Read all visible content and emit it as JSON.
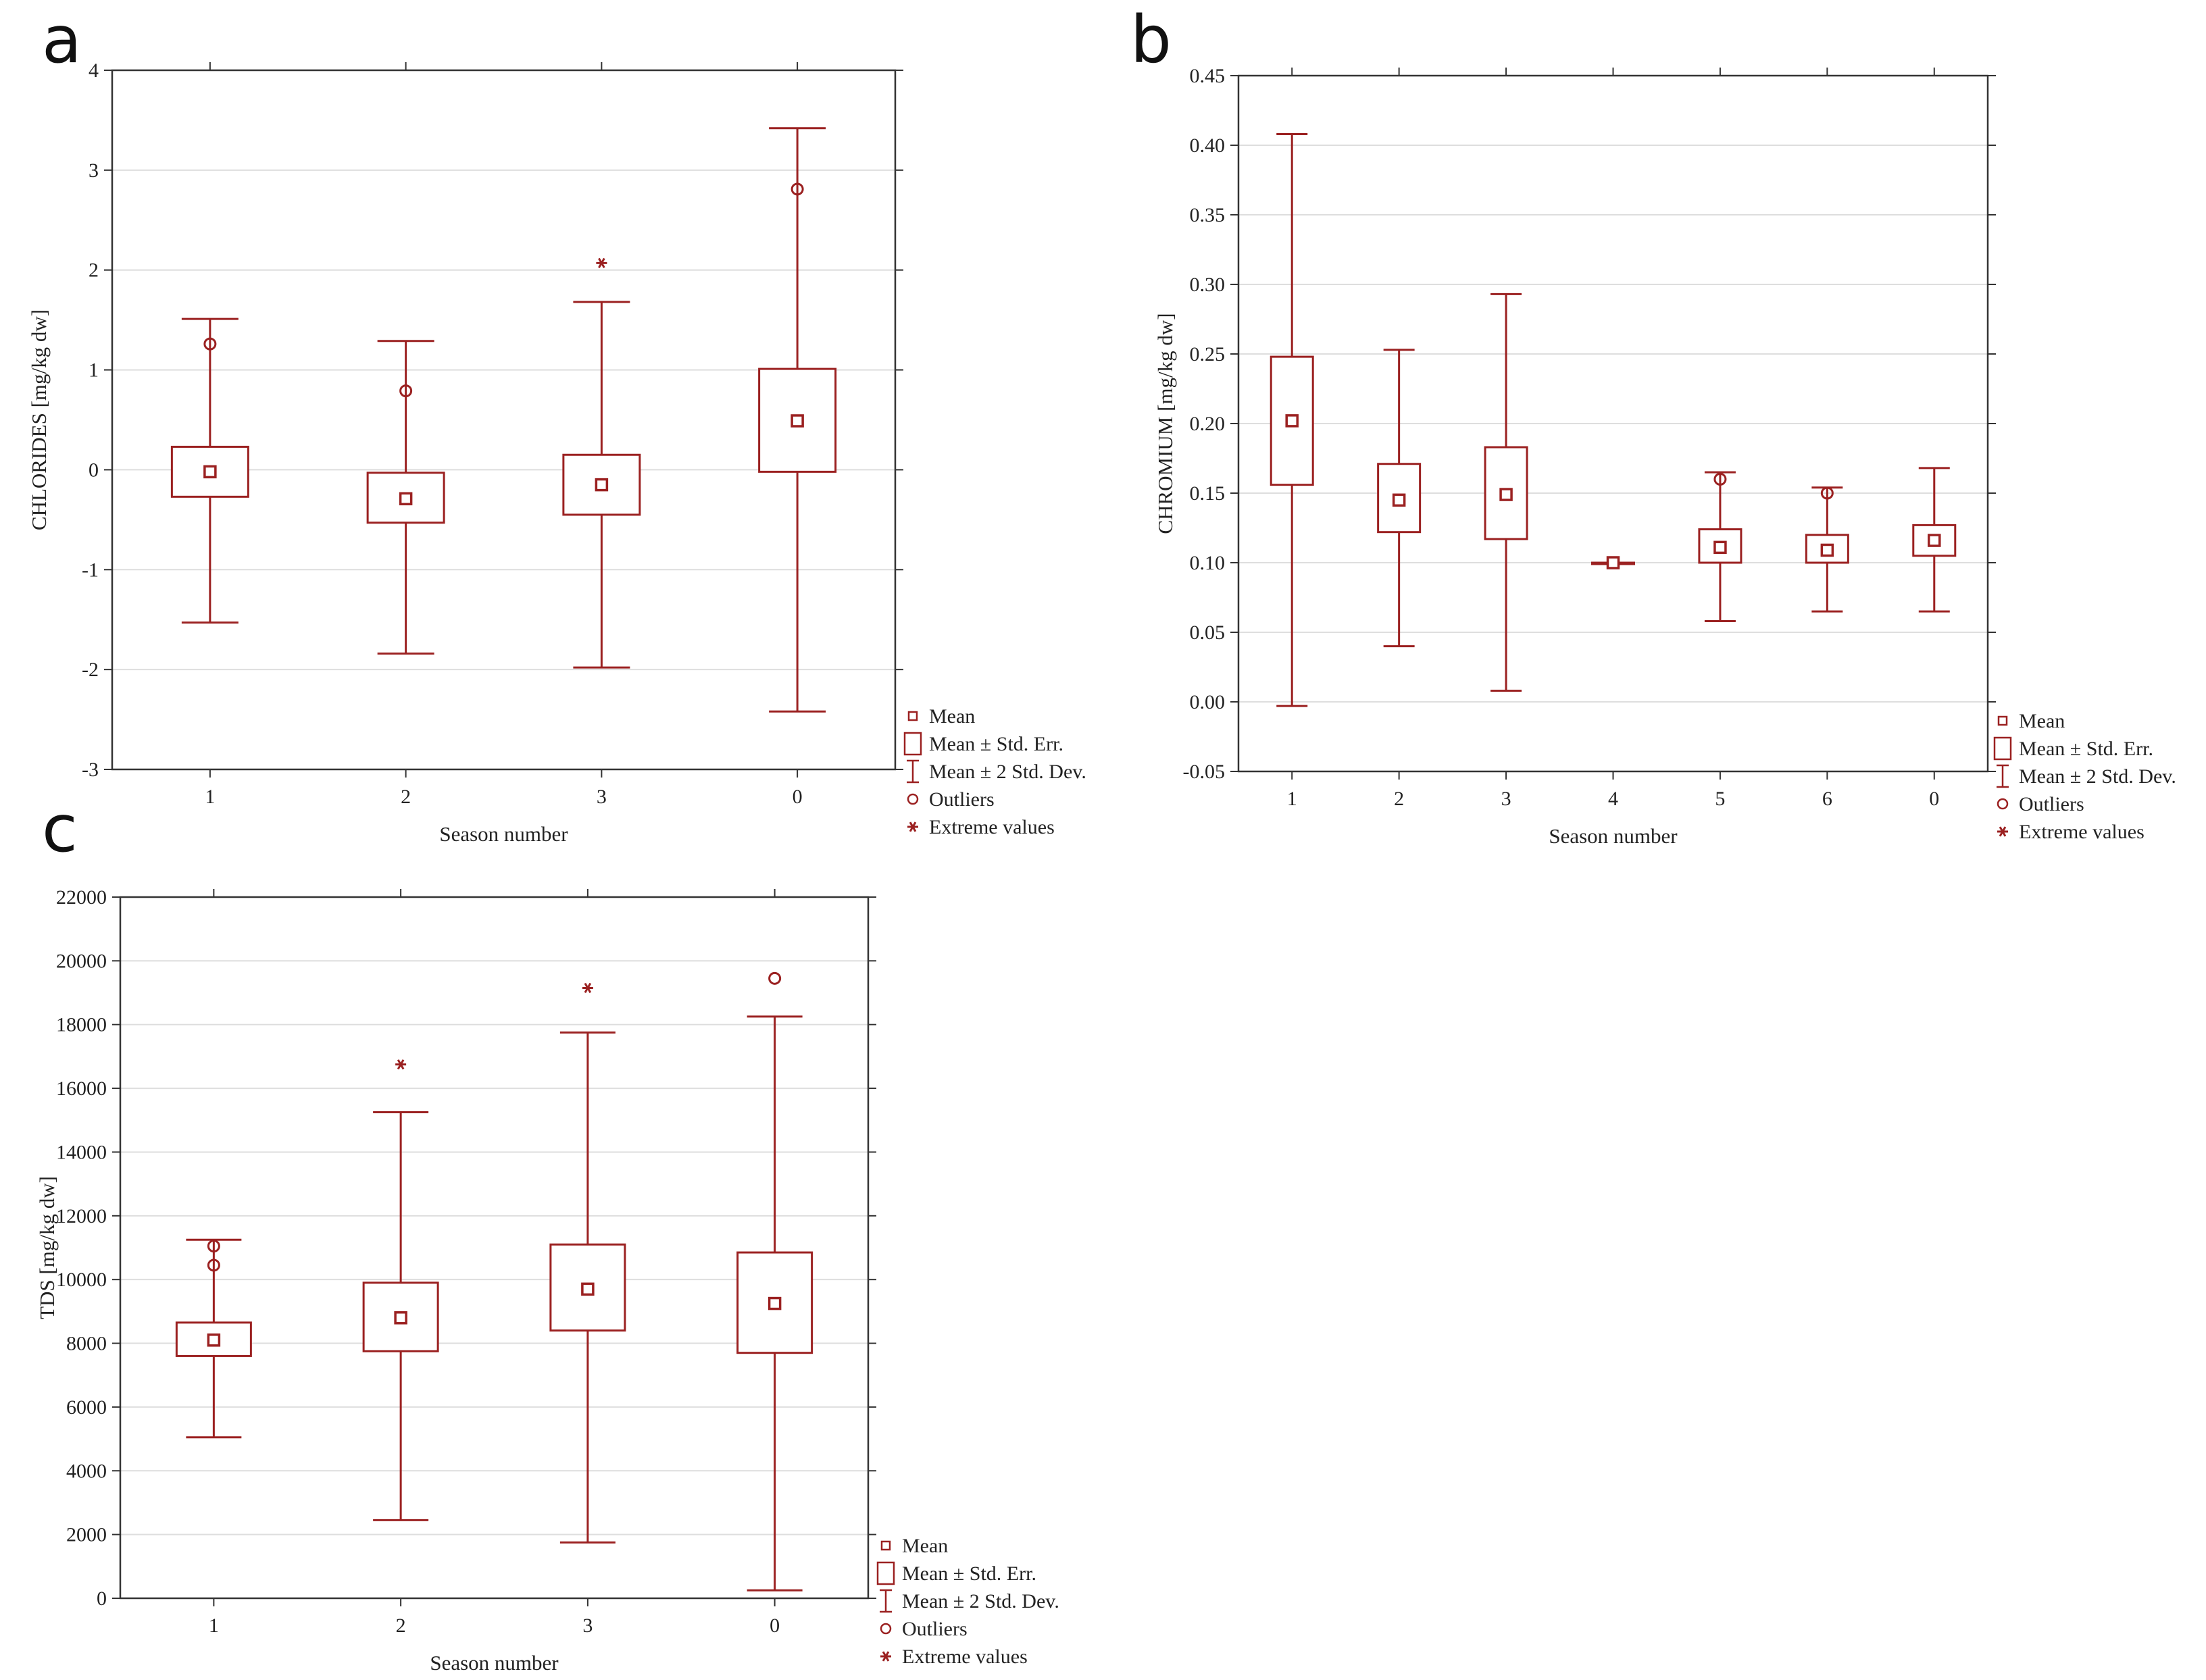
{
  "colors": {
    "mark": "#9b2121",
    "axis": "#333333",
    "grid": "#dedede",
    "text": "#222222"
  },
  "legend": {
    "mean": "Mean",
    "se": "Mean ± Std. Err.",
    "sd": "Mean ± 2 Std. Dev.",
    "outliers": "Outliers",
    "extremes": "Extreme values"
  },
  "chart_data": [
    {
      "panel": "a",
      "type": "box",
      "xlabel": "Season number",
      "ylabel": "CHLORIDES [mg/kg dw]",
      "ylim": [
        -3,
        4
      ],
      "yticks": [
        "-3",
        "-2",
        "-1",
        "0",
        "1",
        "2",
        "3",
        "4"
      ],
      "grid": true,
      "legend_position": "bottom-right",
      "categories": [
        "1",
        "2",
        "3",
        "0"
      ],
      "mean": [
        -0.02,
        -0.29,
        -0.15,
        0.49
      ],
      "se_low": [
        -0.27,
        -0.53,
        -0.45,
        -0.02
      ],
      "se_high": [
        0.23,
        -0.03,
        0.15,
        1.01
      ],
      "sd_low": [
        -1.53,
        -1.84,
        -1.98,
        -2.42
      ],
      "sd_high": [
        1.51,
        1.29,
        1.68,
        3.42
      ],
      "outliers": [
        [
          1.26
        ],
        [
          0.79
        ],
        [],
        [
          2.81
        ]
      ],
      "extremes": [
        [],
        [],
        [
          2.07
        ],
        []
      ]
    },
    {
      "panel": "b",
      "type": "box",
      "xlabel": "Season number",
      "ylabel": "CHROMIUM [mg/kg dw]",
      "ylim": [
        -0.05,
        0.45
      ],
      "yticks": [
        "-0.05",
        "0.00",
        "0.05",
        "0.10",
        "0.15",
        "0.20",
        "0.25",
        "0.30",
        "0.35",
        "0.40",
        "0.45"
      ],
      "grid": true,
      "legend_position": "bottom-right",
      "categories": [
        "1",
        "2",
        "3",
        "4",
        "5",
        "6",
        "0"
      ],
      "mean": [
        0.202,
        0.145,
        0.149,
        0.1,
        0.111,
        0.109,
        0.116
      ],
      "se_low": [
        0.156,
        0.122,
        0.117,
        0.1,
        0.1,
        0.1,
        0.105
      ],
      "se_high": [
        0.248,
        0.171,
        0.183,
        0.1,
        0.124,
        0.12,
        0.127
      ],
      "sd_low": [
        -0.003,
        0.04,
        0.008,
        0.1,
        0.058,
        0.065,
        0.065
      ],
      "sd_high": [
        0.408,
        0.253,
        0.293,
        0.1,
        0.165,
        0.154,
        0.168
      ],
      "outliers": [
        [],
        [],
        [],
        [],
        [
          0.16
        ],
        [
          0.15
        ],
        []
      ],
      "extremes": [
        [],
        [],
        [],
        [],
        [],
        [],
        []
      ]
    },
    {
      "panel": "c",
      "type": "box",
      "xlabel": "Season number",
      "ylabel": "TDS [mg/kg dw]",
      "ylim": [
        0,
        22000
      ],
      "yticks": [
        "0",
        "2000",
        "4000",
        "6000",
        "8000",
        "10000",
        "12000",
        "14000",
        "16000",
        "18000",
        "20000",
        "22000"
      ],
      "grid": true,
      "legend_position": "bottom-right",
      "categories": [
        "1",
        "2",
        "3",
        "0"
      ],
      "mean": [
        8100,
        8800,
        9700,
        9250
      ],
      "se_low": [
        7600,
        7750,
        8400,
        7700
      ],
      "se_high": [
        8650,
        9900,
        11100,
        10850
      ],
      "sd_low": [
        5050,
        2450,
        1750,
        250
      ],
      "sd_high": [
        11250,
        15250,
        17750,
        18250
      ],
      "outliers": [
        [
          11050,
          10450
        ],
        [],
        [],
        [
          19450
        ]
      ],
      "extremes": [
        [],
        [
          16750
        ],
        [
          19150
        ],
        []
      ]
    }
  ]
}
